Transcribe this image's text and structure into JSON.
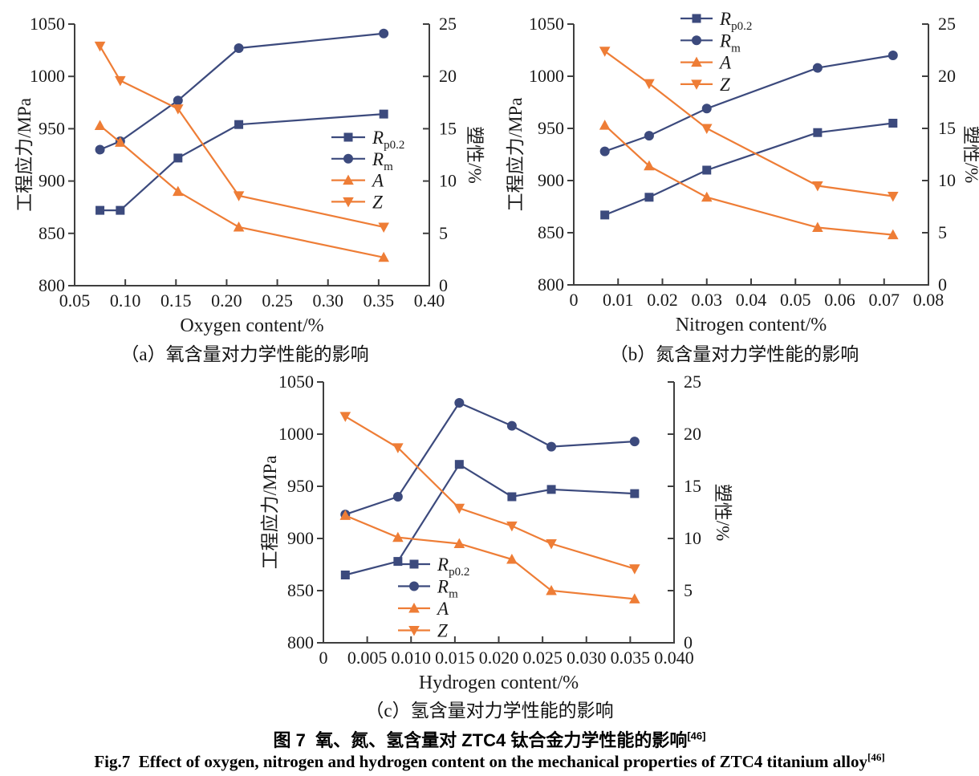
{
  "colors": {
    "navy": "#3c4a7d",
    "orange": "#ee7d36",
    "axis": "#3f3f3f",
    "text": "#1a1a1a"
  },
  "figure_captions": {
    "zh": "图 7  氧、氮、氢含量对 ZTC4 钛合金力学性能的影响",
    "zh_ref": "[46]",
    "en": "Fig.7  Effect of oxygen, nitrogen and hydrogen content on the mechanical properties of ZTC4 titanium alloy",
    "en_ref": "[46]"
  },
  "chart_data": [
    {
      "id": "a",
      "type": "line",
      "caption": "（a）氧含量对力学性能的影响",
      "xlabel": "Oxygen content/%",
      "ylabel": "工程应力/MPa",
      "y2label": "塑性/%",
      "xlim": [
        0.05,
        0.4
      ],
      "ylim": [
        800,
        1050
      ],
      "y2lim": [
        0,
        25
      ],
      "xticks": [
        "0.05",
        "0.10",
        "0.15",
        "0.20",
        "0.25",
        "0.30",
        "0.35",
        "0.40"
      ],
      "yticks": [
        "800",
        "850",
        "900",
        "950",
        "1000",
        "1050"
      ],
      "y2ticks": [
        "0",
        "5",
        "10",
        "15",
        "20",
        "25"
      ],
      "grid": false,
      "legend_position": "center-right",
      "x": [
        0.075,
        0.095,
        0.152,
        0.212,
        0.355
      ],
      "series": [
        {
          "label": "R",
          "label_sub": "p0.2",
          "marker": "square",
          "color": "navy",
          "axis": "left",
          "values": [
            872,
            872,
            922,
            954,
            964
          ]
        },
        {
          "label": "R",
          "label_sub": "m",
          "marker": "circle",
          "color": "navy",
          "axis": "left",
          "values": [
            930,
            938,
            977,
            1027,
            1041
          ]
        },
        {
          "label": "A",
          "label_sub": "",
          "marker": "triangle-up",
          "color": "orange",
          "axis": "right",
          "values": [
            15.3,
            13.7,
            9.0,
            5.6,
            2.7
          ]
        },
        {
          "label": "Z",
          "label_sub": "",
          "marker": "triangle-down",
          "color": "orange",
          "axis": "right",
          "values": [
            22.9,
            19.6,
            16.9,
            8.6,
            5.6
          ]
        }
      ]
    },
    {
      "id": "b",
      "type": "line",
      "caption": "（b）氮含量对力学性能的影响",
      "xlabel": "Nitrogen content/%",
      "ylabel": "工程应力/MPa",
      "y2label": "塑性/%",
      "xlim": [
        0,
        0.08
      ],
      "ylim": [
        800,
        1050
      ],
      "y2lim": [
        0,
        25
      ],
      "xticks": [
        "0",
        "0.01",
        "0.02",
        "0.03",
        "0.04",
        "0.05",
        "0.06",
        "0.07",
        "0.08"
      ],
      "yticks": [
        "800",
        "850",
        "900",
        "950",
        "1000",
        "1050"
      ],
      "y2ticks": [
        "0",
        "5",
        "10",
        "15",
        "20",
        "25"
      ],
      "grid": false,
      "legend_position": "top-center",
      "x": [
        0.007,
        0.017,
        0.03,
        0.055,
        0.072
      ],
      "series": [
        {
          "label": "R",
          "label_sub": "p0.2",
          "marker": "square",
          "color": "navy",
          "axis": "left",
          "values": [
            867,
            884,
            910,
            946,
            955
          ]
        },
        {
          "label": "R",
          "label_sub": "m",
          "marker": "circle",
          "color": "navy",
          "axis": "left",
          "values": [
            928,
            943,
            969,
            1008,
            1020
          ]
        },
        {
          "label": "A",
          "label_sub": "",
          "marker": "triangle-up",
          "color": "orange",
          "axis": "right",
          "values": [
            15.3,
            11.4,
            8.4,
            5.5,
            4.8
          ]
        },
        {
          "label": "Z",
          "label_sub": "",
          "marker": "triangle-down",
          "color": "orange",
          "axis": "right",
          "values": [
            22.4,
            19.3,
            15.0,
            9.5,
            8.5
          ]
        }
      ]
    },
    {
      "id": "c",
      "type": "line",
      "caption": "（c）氢含量对力学性能的影响",
      "xlabel": "Hydrogen content/%",
      "ylabel": "工程应力/MPa",
      "y2label": "塑性/%",
      "xlim": [
        0,
        0.04
      ],
      "ylim": [
        800,
        1050
      ],
      "y2lim": [
        0,
        25
      ],
      "xticks": [
        "0",
        "0.005",
        "0.010",
        "0.015",
        "0.020",
        "0.025",
        "0.030",
        "0.035",
        "0.040"
      ],
      "yticks": [
        "800",
        "850",
        "900",
        "950",
        "1000",
        "1050"
      ],
      "y2ticks": [
        "0",
        "5",
        "10",
        "15",
        "20",
        "25"
      ],
      "grid": false,
      "legend_position": "center-left",
      "x": [
        0.0025,
        0.0085,
        0.0155,
        0.0215,
        0.026,
        0.0355
      ],
      "series": [
        {
          "label": "R",
          "label_sub": "p0.2",
          "marker": "square",
          "color": "navy",
          "axis": "left",
          "values": [
            865,
            878,
            971,
            940,
            947,
            943
          ]
        },
        {
          "label": "R",
          "label_sub": "m",
          "marker": "circle",
          "color": "navy",
          "axis": "left",
          "values": [
            923,
            940,
            1030,
            1008,
            988,
            993
          ]
        },
        {
          "label": "A",
          "label_sub": "",
          "marker": "triangle-up",
          "color": "orange",
          "axis": "right",
          "values": [
            12.2,
            10.1,
            9.5,
            8.0,
            5.0,
            4.2
          ]
        },
        {
          "label": "Z",
          "label_sub": "",
          "marker": "triangle-down",
          "color": "orange",
          "axis": "right",
          "values": [
            21.7,
            18.7,
            12.9,
            11.2,
            9.5,
            7.1
          ]
        }
      ]
    }
  ]
}
